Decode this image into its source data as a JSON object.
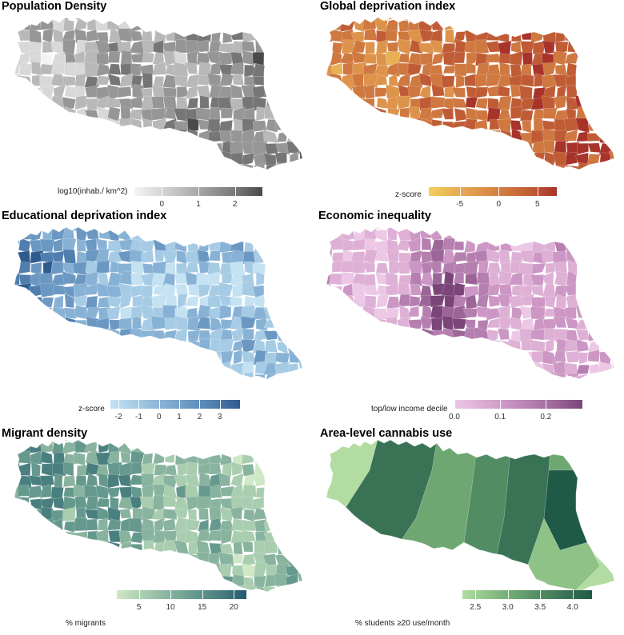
{
  "panels": [
    {
      "title": "Population Density",
      "legend_label": "log10(inhab./ km^2)",
      "colors": [
        "#f4f4f4",
        "#d8d8d8",
        "#b8b8b8",
        "#969696",
        "#767676",
        "#4a4a4a"
      ],
      "ticks": [
        {
          "label": "0",
          "value": 0
        },
        {
          "label": "1",
          "value": 1
        },
        {
          "label": "2",
          "value": 2
        }
      ],
      "range": [
        -0.75,
        2.75
      ]
    },
    {
      "title": "Global deprivation index",
      "legend_label": "z-score",
      "colors": [
        "#f3cf5c",
        "#e8b054",
        "#dd944a",
        "#cf7840",
        "#c05c35",
        "#a8332a"
      ],
      "ticks": [
        {
          "label": "-5",
          "value": -5
        },
        {
          "label": "0",
          "value": 0
        },
        {
          "label": "5",
          "value": 5
        }
      ],
      "range": [
        -9,
        7.5
      ]
    },
    {
      "title": "Educational deprivation index",
      "legend_label": "z-score",
      "colors": [
        "#c4e2f2",
        "#a6cbe5",
        "#88b2d5",
        "#6b98c3",
        "#4f7eaf",
        "#2e5a8e"
      ],
      "ticks": [
        {
          "label": "-2",
          "value": -2
        },
        {
          "label": "-1",
          "value": -1
        },
        {
          "label": "0",
          "value": 0
        },
        {
          "label": "1",
          "value": 1
        },
        {
          "label": "2",
          "value": 2
        },
        {
          "label": "3",
          "value": 3
        }
      ],
      "range": [
        -2.4,
        4.0
      ]
    },
    {
      "title": "Economic inequality",
      "legend_label": "top/low income decile",
      "colors": [
        "#ecc7e6",
        "#deb0d6",
        "#cc97c4",
        "#b57fb0",
        "#9b6598",
        "#7b4579"
      ],
      "ticks": [
        {
          "label": "0.0",
          "value": 0.0
        },
        {
          "label": "0.1",
          "value": 0.1
        },
        {
          "label": "0.2",
          "value": 0.2
        }
      ],
      "range": [
        0.0,
        0.28
      ]
    },
    {
      "title": "Migrant density",
      "legend_label": "% migrants",
      "colors": [
        "#cfe8c5",
        "#a9cdaf",
        "#88b39f",
        "#66998e",
        "#4a7f80",
        "#235a6e"
      ],
      "ticks": [
        {
          "label": "5",
          "value": 5
        },
        {
          "label": "10",
          "value": 10
        },
        {
          "label": "15",
          "value": 15
        },
        {
          "label": "20",
          "value": 20
        }
      ],
      "range": [
        1.5,
        22
      ]
    },
    {
      "title": "Area-level cannabis use",
      "legend_label": "% students ≥20 use/month",
      "colors": [
        "#b3dca2",
        "#8ec287",
        "#6ea772",
        "#518c62",
        "#3a7255",
        "#1f5a47"
      ],
      "ticks": [
        {
          "label": "2.5",
          "value": 2.5
        },
        {
          "label": "3.0",
          "value": 3.0
        },
        {
          "label": "3.5",
          "value": 3.5
        },
        {
          "label": "4.0",
          "value": 4.0
        }
      ],
      "range": [
        2.3,
        4.3
      ]
    }
  ]
}
